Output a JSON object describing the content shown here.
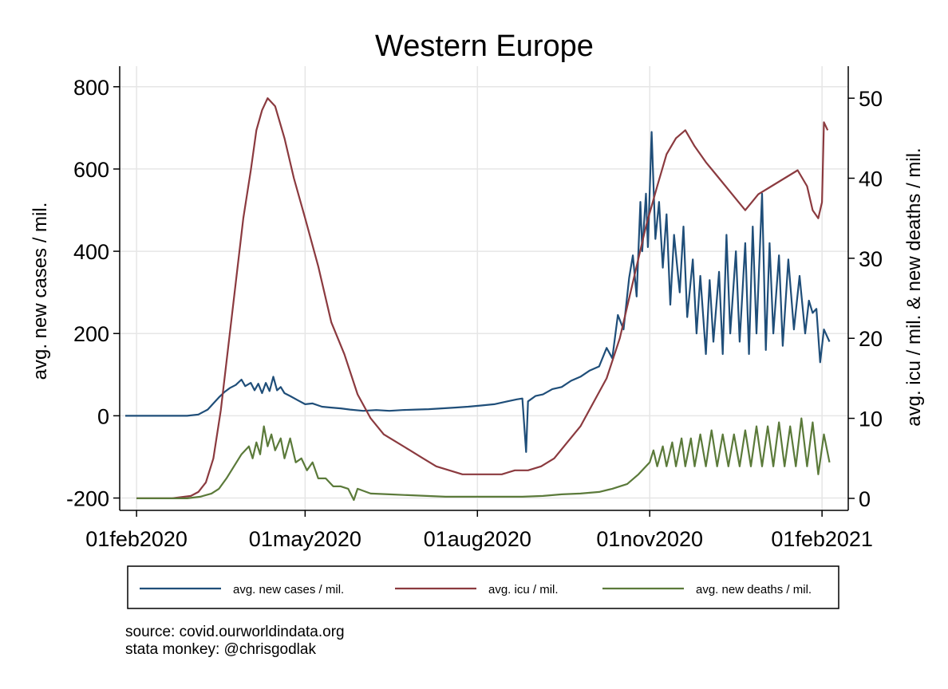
{
  "chart_data": {
    "type": "line",
    "title": "Western Europe",
    "x_axis": {
      "type": "date",
      "range": [
        "2020-01-23",
        "2021-02-15"
      ],
      "ticks": [
        "2020-02-01",
        "2020-05-01",
        "2020-08-01",
        "2020-11-01",
        "2021-02-01"
      ],
      "tick_labels": [
        "01feb2020",
        "01may2020",
        "01aug2020",
        "01nov2020",
        "01feb2021"
      ]
    },
    "y_left": {
      "label": "avg. new cases / mil.",
      "range": [
        -230,
        850
      ],
      "ticks": [
        -200,
        0,
        200,
        400,
        600,
        800
      ],
      "tick_labels": [
        "-200",
        "0",
        "200",
        "400",
        "600",
        "800"
      ]
    },
    "y_right": {
      "label": "avg. icu / mil. & new deaths / mil.",
      "range": [
        -1.5,
        54
      ],
      "ticks": [
        0,
        10,
        20,
        30,
        40,
        50
      ],
      "tick_labels": [
        "0",
        "10",
        "20",
        "30",
        "40",
        "50"
      ]
    },
    "grid": true,
    "legend_position": "bottom",
    "series": [
      {
        "name": "avg. new cases / mil.",
        "axis": "left",
        "color": "#1f4e79",
        "points": [
          [
            "2020-01-26",
            0
          ],
          [
            "2020-02-15",
            0
          ],
          [
            "2020-02-28",
            0
          ],
          [
            "2020-03-05",
            3
          ],
          [
            "2020-03-10",
            15
          ],
          [
            "2020-03-13",
            30
          ],
          [
            "2020-03-16",
            45
          ],
          [
            "2020-03-19",
            58
          ],
          [
            "2020-03-22",
            68
          ],
          [
            "2020-03-25",
            75
          ],
          [
            "2020-03-28",
            88
          ],
          [
            "2020-03-30",
            72
          ],
          [
            "2020-04-02",
            80
          ],
          [
            "2020-04-04",
            62
          ],
          [
            "2020-04-06",
            78
          ],
          [
            "2020-04-08",
            55
          ],
          [
            "2020-04-10",
            80
          ],
          [
            "2020-04-12",
            60
          ],
          [
            "2020-04-14",
            95
          ],
          [
            "2020-04-16",
            62
          ],
          [
            "2020-04-18",
            70
          ],
          [
            "2020-04-20",
            55
          ],
          [
            "2020-04-23",
            48
          ],
          [
            "2020-04-27",
            38
          ],
          [
            "2020-05-01",
            28
          ],
          [
            "2020-05-05",
            30
          ],
          [
            "2020-05-10",
            22
          ],
          [
            "2020-05-15",
            20
          ],
          [
            "2020-05-20",
            18
          ],
          [
            "2020-05-25",
            15
          ],
          [
            "2020-06-01",
            12
          ],
          [
            "2020-06-08",
            14
          ],
          [
            "2020-06-15",
            12
          ],
          [
            "2020-06-22",
            14
          ],
          [
            "2020-06-29",
            15
          ],
          [
            "2020-07-06",
            16
          ],
          [
            "2020-07-13",
            18
          ],
          [
            "2020-07-20",
            20
          ],
          [
            "2020-07-27",
            22
          ],
          [
            "2020-08-03",
            25
          ],
          [
            "2020-08-10",
            28
          ],
          [
            "2020-08-17",
            35
          ],
          [
            "2020-08-22",
            40
          ],
          [
            "2020-08-25",
            42
          ],
          [
            "2020-08-27",
            -88
          ],
          [
            "2020-08-28",
            35
          ],
          [
            "2020-09-01",
            48
          ],
          [
            "2020-09-05",
            52
          ],
          [
            "2020-09-10",
            65
          ],
          [
            "2020-09-15",
            70
          ],
          [
            "2020-09-20",
            85
          ],
          [
            "2020-09-25",
            95
          ],
          [
            "2020-09-30",
            110
          ],
          [
            "2020-10-05",
            120
          ],
          [
            "2020-10-09",
            165
          ],
          [
            "2020-10-12",
            140
          ],
          [
            "2020-10-15",
            245
          ],
          [
            "2020-10-18",
            210
          ],
          [
            "2020-10-21",
            335
          ],
          [
            "2020-10-23",
            390
          ],
          [
            "2020-10-25",
            290
          ],
          [
            "2020-10-27",
            520
          ],
          [
            "2020-10-28",
            400
          ],
          [
            "2020-10-30",
            540
          ],
          [
            "2020-10-31",
            410
          ],
          [
            "2020-11-02",
            690
          ],
          [
            "2020-11-04",
            430
          ],
          [
            "2020-11-06",
            520
          ],
          [
            "2020-11-08",
            360
          ],
          [
            "2020-11-10",
            490
          ],
          [
            "2020-11-12",
            270
          ],
          [
            "2020-11-14",
            440
          ],
          [
            "2020-11-17",
            300
          ],
          [
            "2020-11-19",
            460
          ],
          [
            "2020-11-21",
            240
          ],
          [
            "2020-11-24",
            380
          ],
          [
            "2020-11-26",
            200
          ],
          [
            "2020-11-28",
            340
          ],
          [
            "2020-12-01",
            150
          ],
          [
            "2020-12-03",
            330
          ],
          [
            "2020-12-05",
            180
          ],
          [
            "2020-12-08",
            350
          ],
          [
            "2020-12-10",
            150
          ],
          [
            "2020-12-12",
            440
          ],
          [
            "2020-12-14",
            200
          ],
          [
            "2020-12-17",
            400
          ],
          [
            "2020-12-19",
            180
          ],
          [
            "2020-12-22",
            420
          ],
          [
            "2020-12-24",
            150
          ],
          [
            "2020-12-26",
            460
          ],
          [
            "2020-12-28",
            200
          ],
          [
            "2020-12-31",
            540
          ],
          [
            "2021-01-02",
            160
          ],
          [
            "2021-01-04",
            420
          ],
          [
            "2021-01-06",
            200
          ],
          [
            "2021-01-09",
            390
          ],
          [
            "2021-01-11",
            170
          ],
          [
            "2021-01-14",
            380
          ],
          [
            "2021-01-17",
            210
          ],
          [
            "2021-01-20",
            340
          ],
          [
            "2021-01-23",
            200
          ],
          [
            "2021-01-25",
            280
          ],
          [
            "2021-01-27",
            250
          ],
          [
            "2021-01-29",
            260
          ],
          [
            "2021-01-31",
            130
          ],
          [
            "2021-02-02",
            210
          ],
          [
            "2021-02-05",
            180
          ]
        ]
      },
      {
        "name": "avg. icu / mil.",
        "axis": "right",
        "color": "#8b3a3f",
        "points": [
          [
            "2020-02-01",
            0
          ],
          [
            "2020-02-20",
            0
          ],
          [
            "2020-03-01",
            0.3
          ],
          [
            "2020-03-05",
            0.8
          ],
          [
            "2020-03-09",
            2
          ],
          [
            "2020-03-13",
            5
          ],
          [
            "2020-03-17",
            11
          ],
          [
            "2020-03-21",
            19
          ],
          [
            "2020-03-25",
            27
          ],
          [
            "2020-03-29",
            35
          ],
          [
            "2020-04-02",
            41
          ],
          [
            "2020-04-05",
            46
          ],
          [
            "2020-04-08",
            48.5
          ],
          [
            "2020-04-11",
            50
          ],
          [
            "2020-04-15",
            49
          ],
          [
            "2020-04-20",
            45
          ],
          [
            "2020-04-25",
            40
          ],
          [
            "2020-05-01",
            35
          ],
          [
            "2020-05-08",
            29
          ],
          [
            "2020-05-15",
            22
          ],
          [
            "2020-05-22",
            18
          ],
          [
            "2020-05-29",
            13
          ],
          [
            "2020-06-05",
            10
          ],
          [
            "2020-06-12",
            8
          ],
          [
            "2020-06-19",
            7
          ],
          [
            "2020-06-26",
            6
          ],
          [
            "2020-07-03",
            5
          ],
          [
            "2020-07-10",
            4
          ],
          [
            "2020-07-17",
            3.5
          ],
          [
            "2020-07-24",
            3
          ],
          [
            "2020-07-31",
            3
          ],
          [
            "2020-08-07",
            3
          ],
          [
            "2020-08-14",
            3
          ],
          [
            "2020-08-21",
            3.5
          ],
          [
            "2020-08-28",
            3.5
          ],
          [
            "2020-09-04",
            4
          ],
          [
            "2020-09-11",
            5
          ],
          [
            "2020-09-18",
            7
          ],
          [
            "2020-09-25",
            9
          ],
          [
            "2020-10-02",
            12
          ],
          [
            "2020-10-09",
            15
          ],
          [
            "2020-10-16",
            20
          ],
          [
            "2020-10-23",
            27
          ],
          [
            "2020-10-30",
            34
          ],
          [
            "2020-11-05",
            39
          ],
          [
            "2020-11-10",
            43
          ],
          [
            "2020-11-15",
            45
          ],
          [
            "2020-11-20",
            46
          ],
          [
            "2020-11-25",
            44
          ],
          [
            "2020-12-01",
            42
          ],
          [
            "2020-12-08",
            40
          ],
          [
            "2020-12-15",
            38
          ],
          [
            "2020-12-22",
            36
          ],
          [
            "2020-12-29",
            38
          ],
          [
            "2021-01-05",
            39
          ],
          [
            "2021-01-12",
            40
          ],
          [
            "2021-01-19",
            41
          ],
          [
            "2021-01-24",
            39
          ],
          [
            "2021-01-27",
            36
          ],
          [
            "2021-01-30",
            35
          ],
          [
            "2021-02-01",
            37
          ],
          [
            "2021-02-02",
            47
          ],
          [
            "2021-02-04",
            46
          ]
        ]
      },
      {
        "name": "avg. new deaths / mil.",
        "axis": "right",
        "color": "#5b7a3a",
        "points": [
          [
            "2020-02-01",
            0
          ],
          [
            "2020-02-28",
            0
          ],
          [
            "2020-03-06",
            0.2
          ],
          [
            "2020-03-12",
            0.6
          ],
          [
            "2020-03-16",
            1.2
          ],
          [
            "2020-03-20",
            2.5
          ],
          [
            "2020-03-24",
            4
          ],
          [
            "2020-03-28",
            5.5
          ],
          [
            "2020-04-01",
            6.5
          ],
          [
            "2020-04-03",
            5
          ],
          [
            "2020-04-05",
            7
          ],
          [
            "2020-04-07",
            5.5
          ],
          [
            "2020-04-09",
            9
          ],
          [
            "2020-04-11",
            6.5
          ],
          [
            "2020-04-13",
            8
          ],
          [
            "2020-04-15",
            6
          ],
          [
            "2020-04-18",
            7.5
          ],
          [
            "2020-04-20",
            5
          ],
          [
            "2020-04-23",
            7.5
          ],
          [
            "2020-04-26",
            4.5
          ],
          [
            "2020-04-29",
            5
          ],
          [
            "2020-05-02",
            3.5
          ],
          [
            "2020-05-05",
            4.5
          ],
          [
            "2020-05-08",
            2.5
          ],
          [
            "2020-05-12",
            2.5
          ],
          [
            "2020-05-16",
            1.5
          ],
          [
            "2020-05-20",
            1.5
          ],
          [
            "2020-05-24",
            1.2
          ],
          [
            "2020-05-27",
            -0.2
          ],
          [
            "2020-05-29",
            1.2
          ],
          [
            "2020-06-05",
            0.6
          ],
          [
            "2020-06-15",
            0.5
          ],
          [
            "2020-06-25",
            0.4
          ],
          [
            "2020-07-05",
            0.3
          ],
          [
            "2020-07-15",
            0.2
          ],
          [
            "2020-07-25",
            0.2
          ],
          [
            "2020-08-05",
            0.2
          ],
          [
            "2020-08-15",
            0.2
          ],
          [
            "2020-08-25",
            0.2
          ],
          [
            "2020-09-05",
            0.3
          ],
          [
            "2020-09-15",
            0.5
          ],
          [
            "2020-09-25",
            0.6
          ],
          [
            "2020-10-05",
            0.8
          ],
          [
            "2020-10-12",
            1.2
          ],
          [
            "2020-10-20",
            1.8
          ],
          [
            "2020-10-26",
            3
          ],
          [
            "2020-11-01",
            4.5
          ],
          [
            "2020-11-03",
            6
          ],
          [
            "2020-11-05",
            4
          ],
          [
            "2020-11-08",
            6.5
          ],
          [
            "2020-11-10",
            4
          ],
          [
            "2020-11-13",
            7
          ],
          [
            "2020-11-15",
            4
          ],
          [
            "2020-11-18",
            7.5
          ],
          [
            "2020-11-20",
            4
          ],
          [
            "2020-11-23",
            7.5
          ],
          [
            "2020-11-25",
            4
          ],
          [
            "2020-11-28",
            8
          ],
          [
            "2020-12-01",
            4
          ],
          [
            "2020-12-04",
            8.5
          ],
          [
            "2020-12-07",
            4
          ],
          [
            "2020-12-10",
            8
          ],
          [
            "2020-12-13",
            4
          ],
          [
            "2020-12-16",
            8
          ],
          [
            "2020-12-19",
            4
          ],
          [
            "2020-12-22",
            8.5
          ],
          [
            "2020-12-25",
            4
          ],
          [
            "2020-12-28",
            9
          ],
          [
            "2020-12-31",
            4
          ],
          [
            "2021-01-03",
            9
          ],
          [
            "2021-01-06",
            4
          ],
          [
            "2021-01-09",
            9.5
          ],
          [
            "2021-01-12",
            4
          ],
          [
            "2021-01-15",
            9
          ],
          [
            "2021-01-18",
            4
          ],
          [
            "2021-01-21",
            10
          ],
          [
            "2021-01-24",
            4
          ],
          [
            "2021-01-27",
            9.5
          ],
          [
            "2021-01-30",
            3
          ],
          [
            "2021-02-02",
            8
          ],
          [
            "2021-02-05",
            4.5
          ]
        ]
      }
    ]
  },
  "notes": {
    "source": "source: covid.ourworldindata.org",
    "credit": "stata monkey: @chrisgodlak"
  }
}
